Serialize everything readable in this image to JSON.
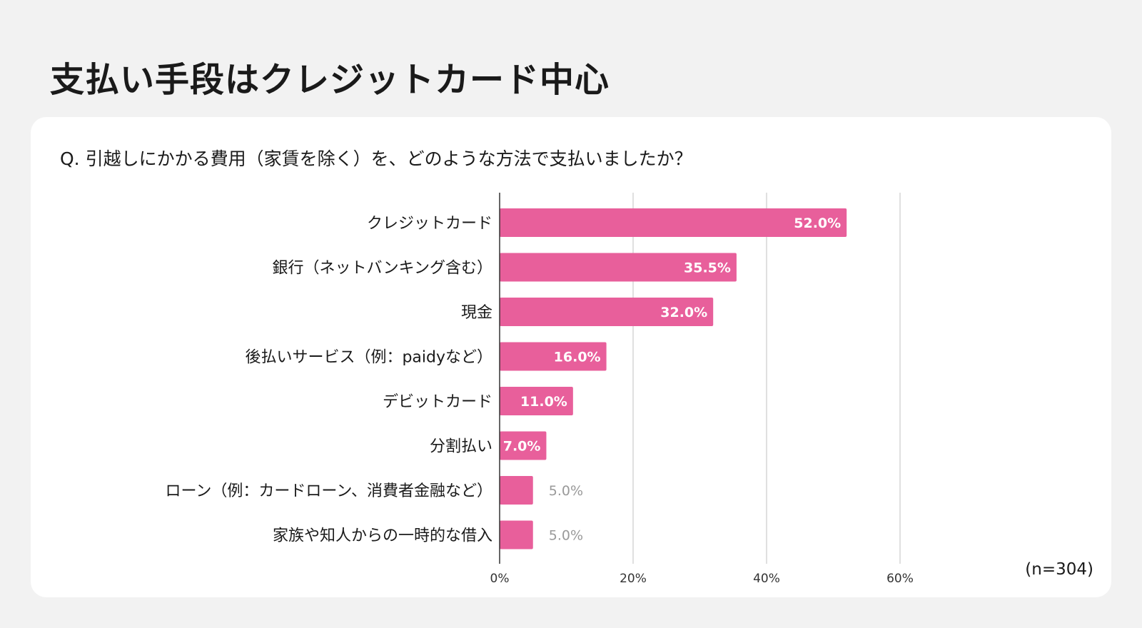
{
  "page_title": "支払い手段はクレジットカード中心",
  "colors": {
    "background": "#f2f2f2",
    "card": "#ffffff",
    "bar": "#e85f9b",
    "grid": "#d6d6d6",
    "axis": "#333333",
    "label_inside": "#ffffff",
    "label_outside": "#999999"
  },
  "chart_data": {
    "type": "bar",
    "orientation": "horizontal",
    "title": "Q. 引越しにかかる費用（家賃を除く）を、どのような方法で支払いましたか？",
    "categories": [
      "クレジットカード",
      "銀行（ネットバンキング含む）",
      "現金",
      "後払いサービス（例：paidyなど）",
      "デビットカード",
      "分割払い",
      "ローン（例：カードローン、消費者金融など）",
      "家族や知人からの一時的な借入"
    ],
    "values": [
      52.0,
      35.5,
      32.0,
      16.0,
      11.0,
      7.0,
      5.0,
      5.0
    ],
    "value_labels": [
      "52.0%",
      "35.5%",
      "32.0%",
      "16.0%",
      "11.0%",
      "7.0%",
      "5.0%",
      "5.0%"
    ],
    "xlim": [
      0,
      60
    ],
    "xticks": [
      0,
      20,
      40,
      60
    ],
    "xtick_labels": [
      "0%",
      "20%",
      "40%",
      "60%"
    ],
    "grid": true,
    "legend": "none",
    "note": "(n=304)"
  }
}
